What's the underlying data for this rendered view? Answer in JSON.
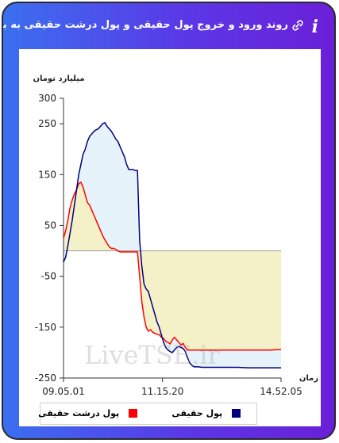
{
  "header": {
    "title": "روند ورود و خروج پول حقیقی و پول درشت حقیقی به بازار",
    "info_icon": "info-icon",
    "link_icon": "link-icon"
  },
  "watermark": "LiveTSE.ir",
  "colors": {
    "series1": "#00007f",
    "series2": "#ff0000",
    "fill1": "#e6f3fb",
    "fill2": "#f5efc2"
  },
  "chart_data": {
    "type": "line",
    "ylabel": "میلیارد تومان",
    "xlabel": "زمان",
    "ylim": [
      -250,
      300
    ],
    "yticks": [
      300,
      250,
      150,
      50,
      -50,
      -150,
      -250
    ],
    "xlim": [
      0,
      100
    ],
    "xticks": [
      {
        "x": 0,
        "label": "09.05.01"
      },
      {
        "x": 45.5,
        "label": "11.15.20"
      },
      {
        "x": 100,
        "label": "14.52.05"
      }
    ],
    "series": [
      {
        "name": "پول حقیقی",
        "x": [
          0,
          1,
          2,
          3,
          4,
          5,
          6,
          7,
          8,
          9,
          10,
          11,
          12,
          13,
          14,
          15,
          16,
          17,
          18,
          19,
          20,
          21,
          22,
          23,
          24,
          25,
          26,
          27,
          28,
          29,
          30,
          31,
          32,
          33,
          34,
          35,
          36,
          37,
          38,
          39,
          40,
          41,
          42,
          43,
          44,
          45,
          46,
          47,
          48,
          49,
          50,
          51,
          52,
          53,
          54,
          55,
          56,
          57,
          58,
          59,
          60,
          62,
          64,
          66,
          68,
          70,
          75,
          80,
          85,
          90,
          95,
          100
        ],
        "values": [
          -22,
          -12,
          10,
          35,
          60,
          90,
          120,
          150,
          170,
          190,
          200,
          215,
          225,
          230,
          235,
          238,
          240,
          245,
          250,
          252,
          245,
          240,
          235,
          228,
          220,
          215,
          205,
          195,
          185,
          170,
          160,
          160,
          160,
          158,
          158,
          20,
          -30,
          -65,
          -75,
          -80,
          -95,
          -110,
          -125,
          -140,
          -150,
          -165,
          -180,
          -190,
          -195,
          -198,
          -200,
          -195,
          -190,
          -188,
          -190,
          -192,
          -198,
          -210,
          -220,
          -225,
          -228,
          -228,
          -229,
          -229,
          -229,
          -229,
          -229,
          -229,
          -230,
          -230,
          -230,
          -230
        ]
      },
      {
        "name": "پول درشت حقیقی",
        "x": [
          0,
          1,
          2,
          3,
          4,
          5,
          6,
          7,
          8,
          9,
          10,
          11,
          12,
          13,
          14,
          15,
          16,
          17,
          18,
          19,
          20,
          21,
          22,
          23,
          24,
          25,
          26,
          27,
          28,
          29,
          30,
          31,
          32,
          33,
          34,
          35,
          36,
          37,
          38,
          39,
          40,
          41,
          42,
          43,
          44,
          45,
          46,
          47,
          48,
          49,
          50,
          51,
          52,
          53,
          54,
          55,
          56,
          57,
          58,
          59,
          60,
          62,
          64,
          66,
          68,
          70,
          75,
          80,
          85,
          90,
          95,
          100
        ],
        "values": [
          25,
          40,
          60,
          85,
          100,
          112,
          120,
          132,
          135,
          125,
          110,
          95,
          90,
          80,
          70,
          60,
          50,
          40,
          30,
          22,
          15,
          8,
          5,
          5,
          3,
          0,
          -2,
          -2,
          -2,
          -2,
          -2,
          -2,
          -2,
          -2,
          -2,
          -50,
          -100,
          -130,
          -150,
          -158,
          -155,
          -160,
          -162,
          -164,
          -165,
          -170,
          -172,
          -178,
          -180,
          -183,
          -175,
          -170,
          -175,
          -180,
          -185,
          -182,
          -190,
          -195,
          -195,
          -195,
          -195,
          -195,
          -195,
          -195,
          -195,
          -195,
          -195,
          -195,
          -195,
          -195,
          -195,
          -194
        ]
      }
    ],
    "legend": "bottom"
  }
}
